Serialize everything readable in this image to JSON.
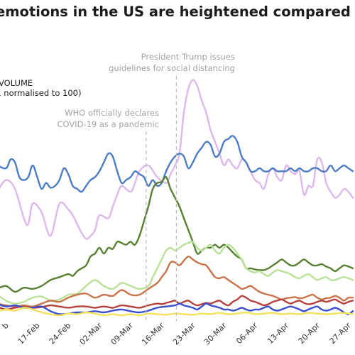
{
  "chart_data": {
    "type": "line",
    "title": "emotions in the US are heightened compared to Janu",
    "ylabel_line1": "VOLUME",
    "ylabel_line2": ", normalised to 100)",
    "x_tick_labels": [
      "b",
      "17-Feb",
      "24-Feb",
      "02-Mar",
      "09-Mar",
      "16-Mar",
      "23-Mar",
      "30-Mar",
      "06-Apr",
      "13-Apr",
      "20-Apr",
      "27-Apr"
    ],
    "x_tick_days": [
      -3,
      4,
      11,
      18,
      25,
      32,
      39,
      46,
      53,
      60,
      67,
      74
    ],
    "xlim": [
      -5,
      75
    ],
    "ylim": [
      0,
      420
    ],
    "annotations": [
      {
        "day": 28.5,
        "lines": [
          "WHO officially declares",
          "COVID-19 as a pandemic"
        ]
      },
      {
        "day": 35.3,
        "lines": [
          "President Trump issues",
          "guidelines for social distancing"
        ]
      }
    ],
    "colors": {
      "title": "#1c1c1c",
      "annotation_text": "#a4a4a4",
      "event_line": "#bdbdbd",
      "lavender": "#dcb8ec",
      "blue": "#4c7cc2",
      "dark_green": "#587f32",
      "light_green": "#b9e197",
      "orange": "#c8734a",
      "red": "#b8413d",
      "navy": "#3a4fcf",
      "yellow": "#f2e35b"
    },
    "series": [
      {
        "color": "#dcb8ec",
        "x": [
          -5,
          -3,
          -1,
          1,
          2,
          3,
          5,
          7,
          9,
          11,
          12,
          13,
          14,
          15,
          16,
          17,
          18,
          20,
          21,
          22,
          23,
          25,
          26,
          27,
          29,
          31,
          33,
          34,
          35,
          36,
          37,
          38,
          39,
          40,
          41,
          42,
          43,
          44,
          45,
          46,
          47,
          48,
          49,
          50,
          51,
          52,
          53,
          54,
          55,
          56,
          57,
          58,
          59,
          60,
          61,
          62,
          63,
          64,
          65,
          66,
          67,
          68,
          69,
          70,
          71,
          72,
          73,
          74,
          75
        ],
        "y": [
          205,
          225,
          210,
          160,
          150,
          185,
          170,
          130,
          185,
          175,
          165,
          150,
          135,
          125,
          130,
          140,
          165,
          160,
          180,
          200,
          215,
          205,
          220,
          240,
          250,
          230,
          220,
          235,
          250,
          270,
          340,
          380,
          395,
          385,
          360,
          340,
          310,
          290,
          270,
          250,
          260,
          250,
          245,
          260,
          255,
          240,
          225,
          220,
          210,
          235,
          245,
          230,
          225,
          250,
          240,
          235,
          240,
          200,
          215,
          215,
          260,
          255,
          220,
          205,
          195,
          200,
          210,
          205,
          195
        ]
      },
      {
        "color": "#4c7cc2",
        "x": [
          -5,
          -3,
          -2,
          -1,
          0,
          1,
          2,
          3,
          4,
          5,
          6,
          7,
          8,
          9,
          10,
          11,
          12,
          13,
          14,
          15,
          16,
          17,
          18,
          19,
          20,
          21,
          22,
          23,
          24,
          25,
          26,
          27,
          28,
          29,
          30,
          31,
          32,
          33,
          34,
          35,
          36,
          37,
          38,
          39,
          40,
          41,
          42,
          43,
          44,
          45,
          46,
          47,
          48,
          49,
          50,
          51,
          52,
          53,
          54,
          55,
          56,
          57,
          58,
          59,
          60,
          61,
          62,
          63,
          64,
          65,
          66,
          67,
          68,
          69,
          70,
          71,
          72,
          73,
          74,
          75
        ],
        "y": [
          250,
          245,
          260,
          255,
          230,
          225,
          230,
          250,
          230,
          210,
          220,
          212,
          215,
          225,
          245,
          235,
          215,
          210,
          205,
          215,
          225,
          230,
          240,
          255,
          270,
          265,
          240,
          220,
          225,
          230,
          240,
          235,
          230,
          215,
          225,
          215,
          220,
          240,
          255,
          265,
          270,
          265,
          245,
          255,
          270,
          280,
          290,
          285,
          265,
          270,
          290,
          295,
          300,
          290,
          265,
          255,
          240,
          240,
          245,
          240,
          240,
          245,
          240,
          240,
          240,
          245,
          240,
          245,
          240,
          240,
          245,
          245,
          240,
          240,
          250,
          240,
          245,
          250,
          245,
          240
        ]
      },
      {
        "color": "#587f32",
        "x": [
          -5,
          -3,
          -1,
          1,
          3,
          5,
          7,
          9,
          11,
          12,
          13,
          14,
          15,
          16,
          17,
          18,
          19,
          20,
          21,
          22,
          23,
          24,
          25,
          26,
          27,
          28,
          29,
          30,
          31,
          32,
          33,
          34,
          35,
          36,
          37,
          38,
          39,
          40,
          41,
          42,
          43,
          44,
          45,
          46,
          47,
          48,
          49,
          50,
          51,
          52,
          53,
          54,
          55,
          56,
          57,
          58,
          59,
          60,
          61,
          62,
          63,
          64,
          65,
          66,
          67,
          68,
          69,
          70,
          71,
          72,
          73,
          74,
          75
        ],
        "y": [
          40,
          45,
          35,
          42,
          40,
          45,
          55,
          60,
          65,
          62,
          70,
          75,
          80,
          95,
          100,
          110,
          100,
          110,
          108,
          120,
          118,
          115,
          120,
          115,
          130,
          155,
          180,
          210,
          220,
          222,
          230,
          210,
          195,
          180,
          160,
          140,
          120,
          100,
          105,
          110,
          110,
          115,
          110,
          115,
          110,
          102,
          95,
          90,
          75,
          75,
          73,
          72,
          72,
          75,
          80,
          85,
          90,
          85,
          80,
          80,
          85,
          90,
          85,
          80,
          80,
          82,
          78,
          75,
          70,
          75,
          80,
          78,
          75
        ]
      },
      {
        "color": "#b9e197",
        "x": [
          -5,
          -3,
          -1,
          1,
          3,
          5,
          7,
          9,
          11,
          13,
          15,
          17,
          19,
          21,
          23,
          25,
          27,
          29,
          30,
          31,
          32,
          33,
          34,
          35,
          36,
          37,
          38,
          39,
          40,
          41,
          42,
          43,
          44,
          45,
          46,
          47,
          48,
          49,
          50,
          51,
          52,
          53,
          54,
          55,
          56,
          57,
          58,
          59,
          60,
          61,
          62,
          63,
          64,
          65,
          66,
          67,
          68,
          69,
          70,
          71,
          72,
          73,
          74,
          75
        ],
        "y": [
          30,
          20,
          15,
          18,
          25,
          27,
          20,
          22,
          30,
          32,
          45,
          55,
          45,
          40,
          50,
          45,
          40,
          45,
          60,
          75,
          90,
          105,
          110,
          105,
          110,
          115,
          118,
          120,
          110,
          105,
          110,
          115,
          105,
          100,
          110,
          115,
          110,
          100,
          90,
          75,
          70,
          68,
          70,
          65,
          62,
          68,
          72,
          70,
          68,
          65,
          60,
          58,
          62,
          65,
          60,
          55,
          58,
          60,
          55,
          55,
          58,
          60,
          58,
          55
        ]
      },
      {
        "color": "#c8734a",
        "x": [
          -5,
          -3,
          -1,
          1,
          3,
          5,
          7,
          9,
          11,
          13,
          15,
          17,
          19,
          21,
          23,
          25,
          27,
          29,
          31,
          32,
          33,
          34,
          35,
          36,
          37,
          38,
          39,
          40,
          41,
          42,
          43,
          44,
          45,
          46,
          47,
          48,
          49,
          50,
          51,
          52,
          53,
          54,
          55,
          56,
          57,
          58,
          59,
          60,
          61,
          62,
          63,
          64,
          65,
          66,
          67,
          68,
          69,
          70,
          71,
          72,
          73,
          74,
          75
        ],
        "y": [
          15,
          12,
          10,
          12,
          10,
          15,
          20,
          18,
          25,
          30,
          32,
          25,
          30,
          28,
          38,
          30,
          30,
          40,
          50,
          60,
          70,
          85,
          85,
          80,
          88,
          95,
          90,
          85,
          82,
          80,
          70,
          60,
          58,
          60,
          55,
          50,
          45,
          40,
          42,
          45,
          40,
          35,
          32,
          30,
          28,
          25,
          22,
          24,
          25,
          26,
          24,
          25,
          28,
          30,
          25,
          22,
          24,
          25,
          28,
          25,
          20,
          25,
          25
        ]
      },
      {
        "color": "#b8413d",
        "x": [
          -5,
          -3,
          -1,
          1,
          3,
          5,
          7,
          9,
          11,
          13,
          15,
          17,
          19,
          21,
          23,
          25,
          27,
          29,
          31,
          32,
          33,
          34,
          35,
          36,
          37,
          38,
          39,
          40,
          41,
          42,
          43,
          44,
          45,
          46,
          47,
          48,
          49,
          50,
          51,
          52,
          53,
          54,
          55,
          56,
          57,
          58,
          59,
          60,
          61,
          62,
          63,
          64,
          65,
          66,
          67,
          68,
          69,
          70,
          71,
          72,
          73,
          74,
          75
        ],
        "y": [
          10,
          5,
          8,
          10,
          8,
          9,
          12,
          10,
          8,
          10,
          10,
          8,
          10,
          8,
          12,
          10,
          8,
          12,
          15,
          14,
          16,
          18,
          20,
          15,
          18,
          20,
          15,
          12,
          14,
          16,
          15,
          18,
          20,
          15,
          12,
          18,
          22,
          28,
          25,
          20,
          18,
          15,
          12,
          14,
          18,
          20,
          22,
          18,
          15,
          18,
          20,
          16,
          14,
          15,
          18,
          20,
          18,
          20,
          22,
          18,
          15,
          18,
          20
        ]
      },
      {
        "color": "#3a4fcf",
        "x": [
          -5,
          -3,
          -1,
          1,
          3,
          5,
          7,
          9,
          11,
          13,
          15,
          17,
          19,
          21,
          23,
          25,
          27,
          29,
          31,
          33,
          35,
          36,
          37,
          38,
          39,
          40,
          41,
          42,
          43,
          44,
          45,
          46,
          47,
          48,
          49,
          50,
          51,
          52,
          53,
          54,
          55,
          56,
          57,
          58,
          59,
          60,
          61,
          62,
          63,
          64,
          65,
          66,
          67,
          68,
          69,
          70,
          71,
          72,
          73,
          74,
          75
        ],
        "y": [
          15,
          10,
          12,
          8,
          8,
          10,
          2,
          -3,
          -2,
          0,
          0,
          2,
          0,
          3,
          5,
          2,
          0,
          3,
          8,
          10,
          12,
          15,
          12,
          10,
          8,
          5,
          10,
          15,
          12,
          10,
          8,
          5,
          5,
          3,
          5,
          8,
          5,
          3,
          5,
          5,
          8,
          10,
          5,
          3,
          5,
          8,
          10,
          8,
          5,
          2,
          5,
          8,
          10,
          5,
          3,
          5,
          8,
          5,
          0,
          -3,
          2
        ]
      },
      {
        "color": "#f2e35b",
        "x": [
          -5,
          -3,
          -1,
          1,
          3,
          5,
          7,
          9,
          11,
          13,
          15,
          17,
          19,
          21,
          23,
          25,
          27,
          29,
          31,
          33,
          35,
          37,
          39,
          41,
          43,
          45,
          47,
          49,
          51,
          53,
          55,
          57,
          59,
          61,
          63,
          65,
          67,
          69,
          71,
          73,
          75
        ],
        "y": [
          2,
          5,
          3,
          8,
          5,
          0,
          -3,
          -5,
          -2,
          -3,
          0,
          -2,
          -5,
          -3,
          -5,
          -3,
          -5,
          -2,
          -3,
          -4,
          -2,
          -3,
          -4,
          -2,
          -3,
          -1,
          -3,
          -2,
          0,
          -3,
          -2,
          -1,
          -3,
          -2,
          -3,
          -1,
          -2,
          -3,
          -2,
          -1,
          -3
        ]
      }
    ]
  }
}
